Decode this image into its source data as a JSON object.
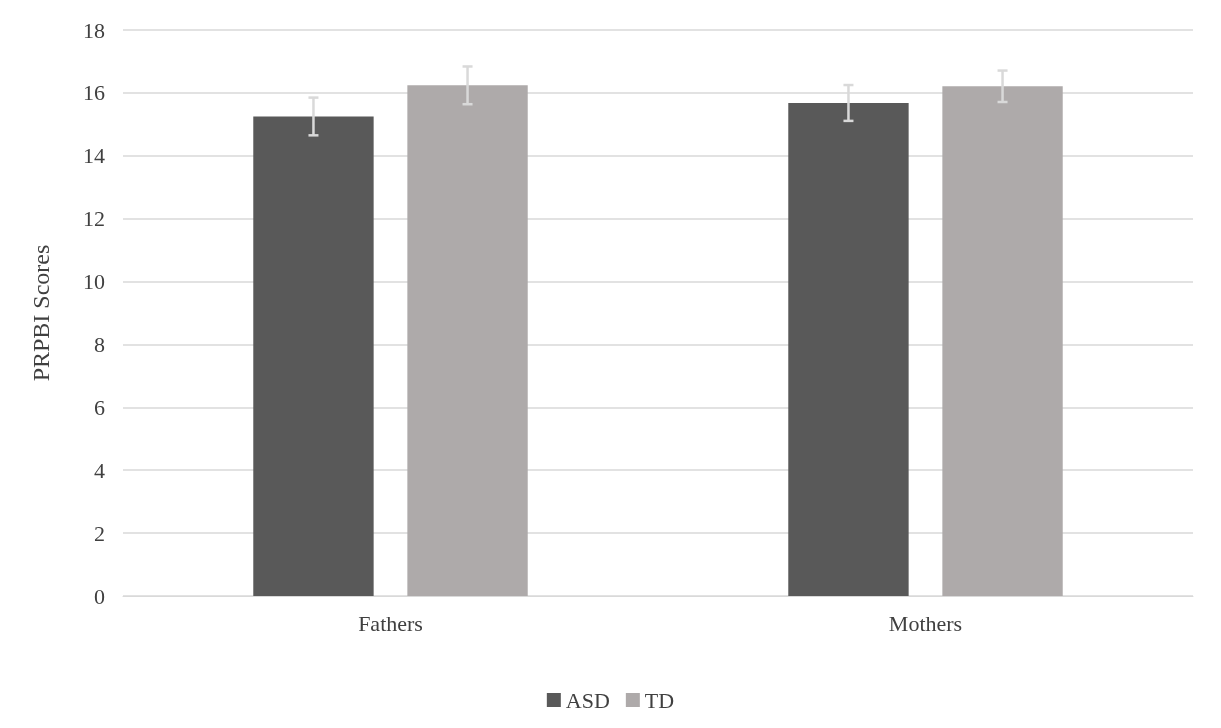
{
  "chart_data": {
    "type": "bar",
    "ylabel": "PRPBI Scores",
    "categories": [
      "Fathers",
      "Mothers"
    ],
    "series": [
      {
        "name": "ASD",
        "color": "#595959",
        "values": [
          15.25,
          15.68
        ],
        "errors": [
          0.6,
          0.57
        ]
      },
      {
        "name": "TD",
        "color": "#aeaaaa",
        "values": [
          16.24,
          16.21
        ],
        "errors": [
          0.6,
          0.5
        ]
      }
    ],
    "ylim": [
      0,
      18
    ],
    "yticks": [
      0,
      2,
      4,
      6,
      8,
      10,
      12,
      14,
      16,
      18
    ],
    "grid": "y",
    "legend": "bottom"
  }
}
